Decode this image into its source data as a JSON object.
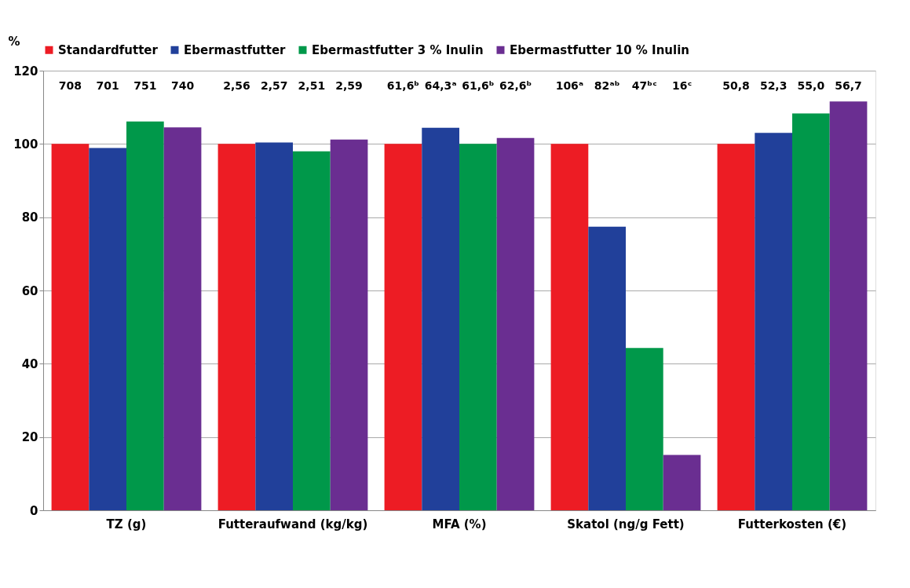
{
  "chart_data": {
    "type": "bar",
    "ylabel": "%",
    "categories": [
      "TZ (g)",
      "Futteraufwand (kg/kg)",
      "MFA (%)",
      "Skatol (ng/g Fett)",
      "Futterkosten (€)"
    ],
    "series": [
      {
        "name": "Standardfutter",
        "color": "#ed1c24",
        "values": [
          100,
          100,
          100,
          100,
          100
        ]
      },
      {
        "name": "Ebermastfutter",
        "color": "#21409a",
        "values": [
          98.9,
          100.4,
          104.4,
          77.4,
          103.0
        ]
      },
      {
        "name": "Ebermastfutter 3 % Inulin",
        "color": "#00984a",
        "values": [
          106.1,
          98.0,
          100,
          44.3,
          108.3
        ]
      },
      {
        "name": "Ebermastfutter 10 % Inulin",
        "color": "#6a2e91",
        "values": [
          104.5,
          101.2,
          101.6,
          15.1,
          111.6
        ]
      }
    ],
    "annotations": [
      "708",
      "701",
      "751",
      "740",
      "2,56",
      "2,57",
      "2,51",
      "2,59",
      "61,6ᵇ",
      "64,3ᵃ",
      "61,6ᵇ",
      "62,6ᵇ",
      "106ᵃ",
      "82ᵃᵇ",
      "47ᵇᶜ",
      "16ᶜ",
      "50,8",
      "52,3",
      "55,0",
      "56,7"
    ],
    "ylim": [
      0,
      120
    ],
    "yticks": [
      0,
      20,
      40,
      60,
      80,
      100,
      120
    ],
    "grid": "y",
    "legend": "top"
  }
}
